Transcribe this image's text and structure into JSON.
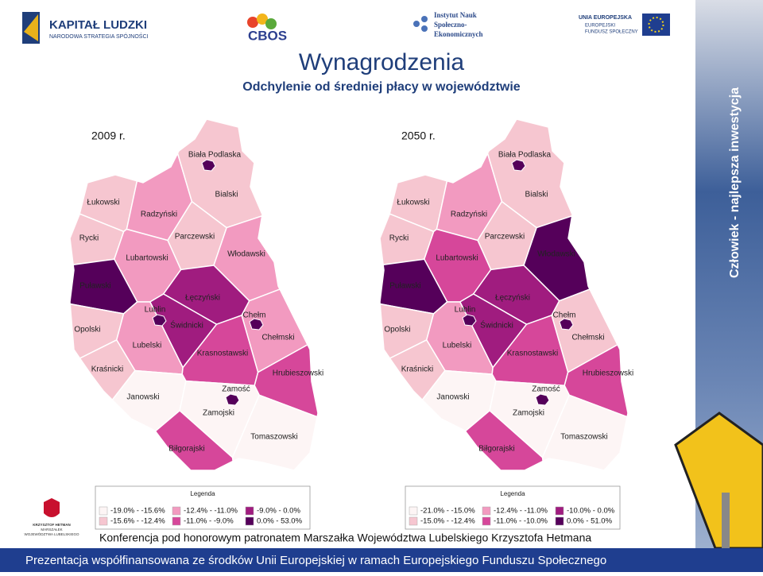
{
  "header": {
    "logos": [
      "KAPITAŁ LUDZKI",
      "NARODOWA STRATEGIA SPÓJNOŚCI",
      "CBOS",
      "Instytut Nauk",
      "Społeczno-",
      "Ekonomicznych",
      "UNIA EUROPEJSKA",
      "EUROPEJSKI",
      "FUNDUSZ SPOŁECZNY"
    ]
  },
  "title": "Wynagrodzenia",
  "subtitle": "Odchylenie od średniej płacy w województwie",
  "maps": [
    {
      "year": "2009 r.",
      "regions": [
        {
          "name": "Biała Podlaska",
          "color": "#55005a"
        },
        {
          "name": "Łukowski",
          "color": "#f6c6d0"
        },
        {
          "name": "Radzyński",
          "color": "#f29ac0"
        },
        {
          "name": "Bialski",
          "color": "#f6c6d0"
        },
        {
          "name": "Rycki",
          "color": "#f6c6d0"
        },
        {
          "name": "Parczewski",
          "color": "#f6c6d0"
        },
        {
          "name": "Lubartowski",
          "color": "#f29ac0"
        },
        {
          "name": "Włodawski",
          "color": "#f29ac0"
        },
        {
          "name": "Puławski",
          "color": "#55005a"
        },
        {
          "name": "Łęczyński",
          "color": "#a01c7f"
        },
        {
          "name": "Lublin",
          "color": "#55005a"
        },
        {
          "name": "Chełm",
          "color": "#55005a"
        },
        {
          "name": "Opolski",
          "color": "#f6c6d0"
        },
        {
          "name": "Świdnicki",
          "color": "#a01c7f"
        },
        {
          "name": "Chełmski",
          "color": "#f29ac0"
        },
        {
          "name": "Lubelski",
          "color": "#f29ac0"
        },
        {
          "name": "Krasnostawski",
          "color": "#d6479a"
        },
        {
          "name": "Kraśnicki",
          "color": "#f6c6d0"
        },
        {
          "name": "Hrubieszowski",
          "color": "#d6479a"
        },
        {
          "name": "Janowski",
          "color": "#fdf5f5"
        },
        {
          "name": "Zamość",
          "color": "#55005a"
        },
        {
          "name": "Zamojski",
          "color": "#fdf5f5"
        },
        {
          "name": "Tomaszowski",
          "color": "#fdf5f5"
        },
        {
          "name": "Biłgorajski",
          "color": "#d6479a"
        }
      ],
      "legend": {
        "title": "Legenda",
        "items": [
          {
            "label": "-19.0% - -15.6%",
            "color": "#fdf5f5"
          },
          {
            "label": "-15.6% - -12.4%",
            "color": "#f6c6d0"
          },
          {
            "label": "-12.4% - -11.0%",
            "color": "#f29ac0"
          },
          {
            "label": "-11.0% - -9.0%",
            "color": "#d6479a"
          },
          {
            "label": "-9.0% - 0.0%",
            "color": "#a01c7f"
          },
          {
            "label": "0.0% - 53.0%",
            "color": "#55005a"
          }
        ]
      }
    },
    {
      "year": "2050 r.",
      "regions": [
        {
          "name": "Biała Podlaska",
          "color": "#55005a"
        },
        {
          "name": "Łukowski",
          "color": "#f6c6d0"
        },
        {
          "name": "Radzyński",
          "color": "#f29ac0"
        },
        {
          "name": "Bialski",
          "color": "#f6c6d0"
        },
        {
          "name": "Rycki",
          "color": "#f6c6d0"
        },
        {
          "name": "Parczewski",
          "color": "#f6c6d0"
        },
        {
          "name": "Lubartowski",
          "color": "#d6479a"
        },
        {
          "name": "Włodawski",
          "color": "#55005a"
        },
        {
          "name": "Puławski",
          "color": "#55005a"
        },
        {
          "name": "Łęczyński",
          "color": "#a01c7f"
        },
        {
          "name": "Lublin",
          "color": "#55005a"
        },
        {
          "name": "Chełm",
          "color": "#55005a"
        },
        {
          "name": "Opolski",
          "color": "#f6c6d0"
        },
        {
          "name": "Świdnicki",
          "color": "#a01c7f"
        },
        {
          "name": "Chełmski",
          "color": "#f6c6d0"
        },
        {
          "name": "Lubelski",
          "color": "#f29ac0"
        },
        {
          "name": "Krasnostawski",
          "color": "#d6479a"
        },
        {
          "name": "Kraśnicki",
          "color": "#f6c6d0"
        },
        {
          "name": "Hrubieszowski",
          "color": "#d6479a"
        },
        {
          "name": "Janowski",
          "color": "#fdf5f5"
        },
        {
          "name": "Zamość",
          "color": "#55005a"
        },
        {
          "name": "Zamojski",
          "color": "#fdf5f5"
        },
        {
          "name": "Tomaszowski",
          "color": "#fdf5f5"
        },
        {
          "name": "Biłgorajski",
          "color": "#d6479a"
        }
      ],
      "legend": {
        "title": "Legenda",
        "items": [
          {
            "label": "-21.0% - -15.0%",
            "color": "#fdf5f5"
          },
          {
            "label": "-15.0% - -12.4%",
            "color": "#f6c6d0"
          },
          {
            "label": "-12.4% - -11.0%",
            "color": "#f29ac0"
          },
          {
            "label": "-11.0% - -10.0%",
            "color": "#d6479a"
          },
          {
            "label": "-10.0% - 0.0%",
            "color": "#a01c7f"
          },
          {
            "label": "0.0% - 51.0%",
            "color": "#55005a"
          }
        ]
      }
    }
  ],
  "sidebar": "Człowiek - najlepsza inwestycja",
  "patron": {
    "caption": [
      "KRZYSZTOF HETMAN",
      "MARSZAŁEK",
      "WOJEWÓDZTWA LUBELSKIEGO"
    ],
    "text": "Konferencja pod honorowym patronatem Marszałka Województwa Lubelskiego Krzysztofa Hetmana"
  },
  "footer": "Prezentacja współfinansowana ze środków Unii Europejskiej w ramach Europejskiego Funduszu Społecznego"
}
